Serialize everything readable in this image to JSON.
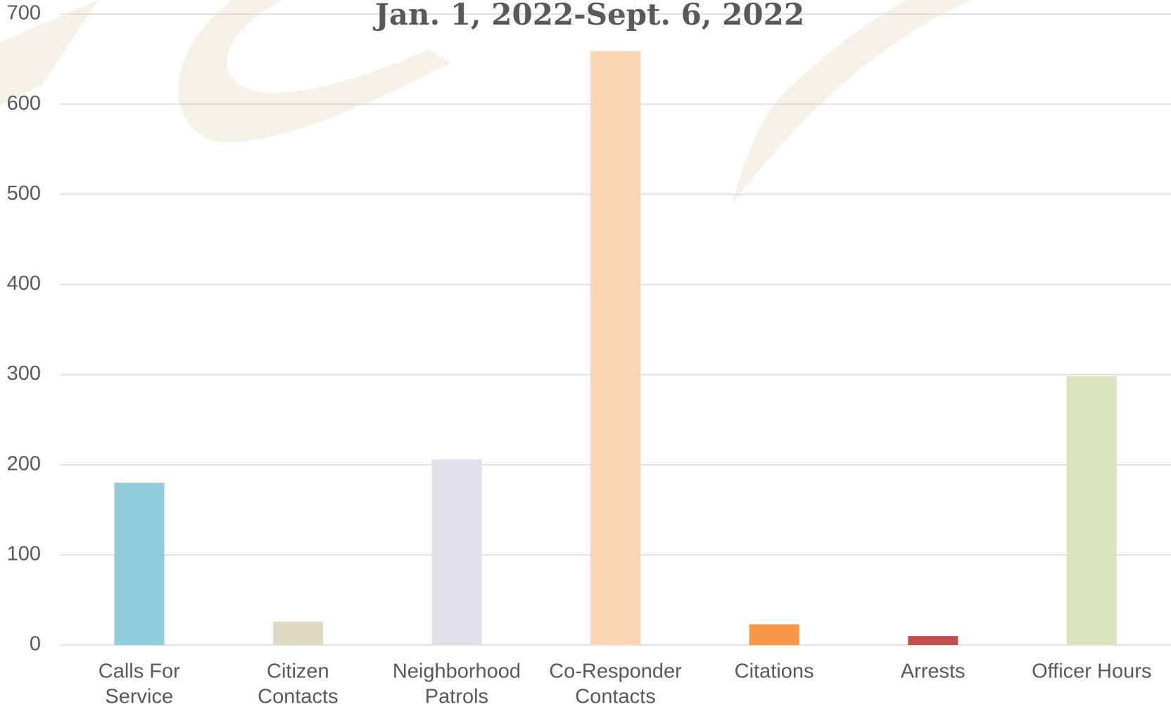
{
  "chart_data": {
    "type": "bar",
    "title": "Jan. 1, 2022-Sept. 6, 2022",
    "categories": [
      [
        "Calls For",
        "Service"
      ],
      [
        "Citizen",
        "Contacts"
      ],
      [
        "Neighborhood",
        "Patrols"
      ],
      [
        "Co-Responder",
        "Contacts"
      ],
      [
        "Citations"
      ],
      [
        "Arrests"
      ],
      [
        "Officer Hours"
      ]
    ],
    "values": [
      180,
      26,
      206,
      659,
      23,
      10,
      298
    ],
    "colors": [
      "#92cddd",
      "#ddd9c3",
      "#e4dfec",
      "#fbd4b4",
      "#f79646",
      "#c0504d",
      "#d7e4bc"
    ],
    "ylim": [
      0,
      700
    ],
    "yticks": [
      0,
      100,
      200,
      300,
      400,
      500,
      600,
      700
    ],
    "grid": true
  }
}
